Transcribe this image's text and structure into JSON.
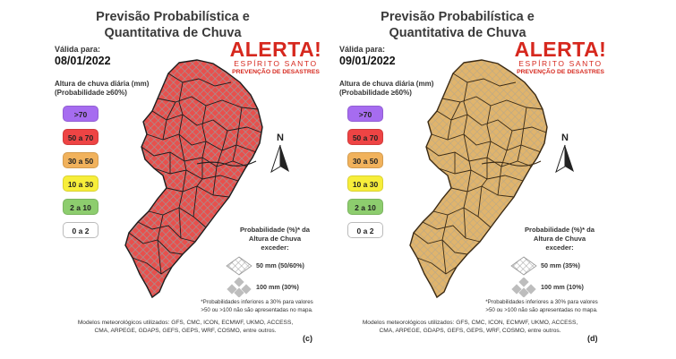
{
  "colors": {
    "alert_red": "#d6281e",
    "map_fill_c": "#e8504d",
    "map_fill_d": "#e0b46c",
    "legend": [
      "#a66cf0",
      "#ee4444",
      "#f1b25c",
      "#f7ee3a",
      "#8dcd6e",
      "#ffffff"
    ]
  },
  "panels": [
    {
      "title_line1": "Previsão Probabilística e",
      "title_line2": "Quantitativa de Chuva",
      "valid_label": "Válida para:",
      "valid_date": "08/01/2022",
      "logo_main": "ALERTA!",
      "logo_sub": "ESPÍRITO SANTO",
      "logo_sub2": "PREVENÇÃO DE DESASTRES",
      "legend_title_1": "Altura de chuva diária (mm)",
      "legend_title_2": "(Probabilidade ≥60%)",
      "legend": [
        ">70",
        "50 a 70",
        "30 a 50",
        "10 a 30",
        "2 a 10",
        "0 a 2"
      ],
      "north": "N",
      "prob_title_1": "Probabilidade (%)* da",
      "prob_title_2": "Altura de Chuva",
      "prob_title_3": "exceder:",
      "prob_50": "50 mm (50/60%)",
      "prob_100": "100 mm (30%)",
      "footnote_1": "*Probabilidades inferiores a 30% para valores",
      "footnote_2": ">50 ou >100 não são apresentadas no mapa.",
      "models_1": "Modelos meteorológicos utilizados: GFS, CMC, ICON, ECMWF, UKMO, ACCESS,",
      "models_2": "CMA, ARPEGE, GDAPS, GEFS, GEPS, WRF, COSMO, entre outros.",
      "letter": "(c)"
    },
    {
      "title_line1": "Previsão Probabilística e",
      "title_line2": "Quantitativa de Chuva",
      "valid_label": "Válida para:",
      "valid_date": "09/01/2022",
      "logo_main": "ALERTA!",
      "logo_sub": "ESPÍRITO SANTO",
      "logo_sub2": "PREVENÇÃO DE DESASTRES",
      "legend_title_1": "Altura de chuva diária (mm)",
      "legend_title_2": "(Probabilidade ≥60%)",
      "legend": [
        ">70",
        "50 a 70",
        "30 a 50",
        "10 a 30",
        "2 a 10",
        "0 a 2"
      ],
      "north": "N",
      "prob_title_1": "Probabilidade (%)* da",
      "prob_title_2": "Altura de Chuva",
      "prob_title_3": "exceder:",
      "prob_50": "50 mm (35%)",
      "prob_100": "100 mm (10%)",
      "footnote_1": "*Probabilidades inferiores a 30% para valores",
      "footnote_2": ">50 ou >100 não são apresentadas no mapa.",
      "models_1": "Modelos meteorológicos utilizados: GFS, CMC, ICON, ECMWF, UKMO, ACCESS,",
      "models_2": "CMA, ARPEGE, GDAPS, GEFS, GEPS, WRF, COSMO, entre outros.",
      "letter": "(d)"
    }
  ]
}
